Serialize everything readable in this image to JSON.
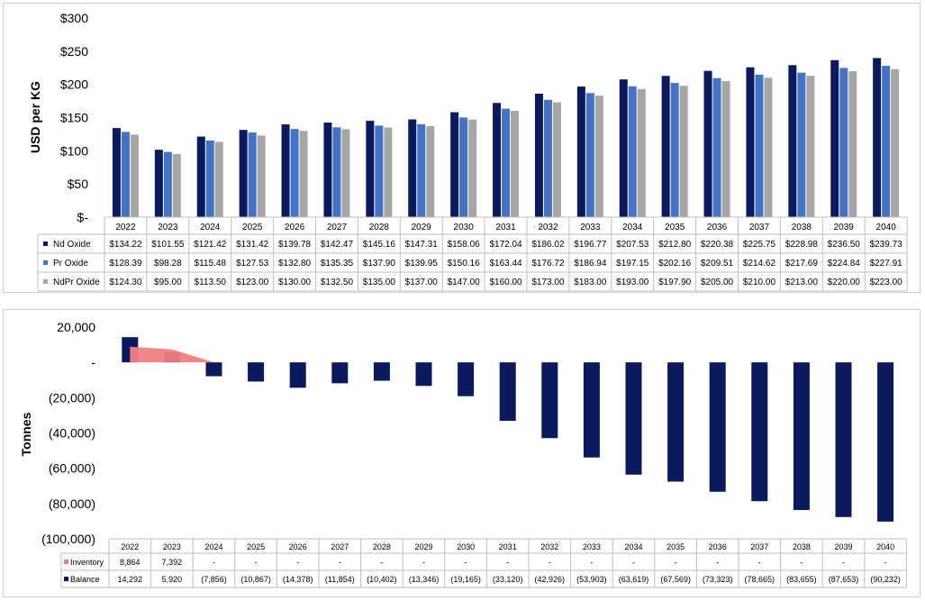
{
  "chart_data": [
    {
      "type": "bar",
      "ylabel": "USD per KG",
      "ylim": [
        0,
        300
      ],
      "yticks": [
        "$-",
        "$50",
        "$100",
        "$150",
        "$200",
        "$250",
        "$300"
      ],
      "categories": [
        "2022",
        "2023",
        "2024",
        "2025",
        "2026",
        "2027",
        "2028",
        "2029",
        "2030",
        "2031",
        "2032",
        "2033",
        "2034",
        "2035",
        "2036",
        "2037",
        "2038",
        "2039",
        "2040"
      ],
      "series": [
        {
          "name": "Nd Oxide",
          "color": "#0b1a5c",
          "values": [
            134.22,
            101.55,
            121.42,
            131.42,
            139.78,
            142.47,
            145.16,
            147.31,
            158.06,
            172.04,
            186.02,
            196.77,
            207.53,
            212.8,
            220.38,
            225.75,
            228.98,
            236.5,
            239.73
          ],
          "labels": [
            "$134.22",
            "$101.55",
            "$121.42",
            "$131.42",
            "$139.78",
            "$142.47",
            "$145.16",
            "$147.31",
            "$158.06",
            "$172.04",
            "$186.02",
            "$196.77",
            "$207.53",
            "$212.80",
            "$220.38",
            "$225.75",
            "$228.98",
            "$236.50",
            "$239.73"
          ]
        },
        {
          "name": "Pr Oxide",
          "color": "#4472c4",
          "values": [
            128.39,
            98.28,
            115.48,
            127.53,
            132.8,
            135.35,
            137.9,
            139.95,
            150.16,
            163.44,
            176.72,
            186.94,
            197.15,
            202.16,
            209.51,
            214.62,
            217.69,
            224.84,
            227.91
          ],
          "labels": [
            "$128.39",
            "$98.28",
            "$115.48",
            "$127.53",
            "$132.80",
            "$135.35",
            "$137.90",
            "$139.95",
            "$150.16",
            "$163.44",
            "$176.72",
            "$186.94",
            "$197.15",
            "$202.16",
            "$209.51",
            "$214.62",
            "$217.69",
            "$224.84",
            "$227.91"
          ]
        },
        {
          "name": "NdPr Oxide",
          "color": "#a6a6a6",
          "values": [
            124.3,
            95.0,
            113.5,
            123.0,
            130.0,
            132.5,
            135.0,
            137.0,
            147.0,
            160.0,
            173.0,
            183.0,
            193.0,
            197.9,
            205.0,
            210.0,
            213.0,
            220.0,
            223.0
          ],
          "labels": [
            "$124.30",
            "$95.00",
            "$113.50",
            "$123.00",
            "$130.00",
            "$132.50",
            "$135.00",
            "$137.00",
            "$147.00",
            "$160.00",
            "$173.00",
            "$183.00",
            "$193.00",
            "$197.90",
            "$205.00",
            "$210.00",
            "$213.00",
            "$220.00",
            "$223.00"
          ]
        }
      ]
    },
    {
      "type": "bar",
      "ylabel": "Tonnes",
      "ylim": [
        -100000,
        20000
      ],
      "yticks": [
        "(100,000)",
        "(80,000)",
        "(60,000)",
        "(40,000)",
        "(20,000)",
        "-",
        "20,000"
      ],
      "categories": [
        "2022",
        "2023",
        "2024",
        "2025",
        "2026",
        "2027",
        "2028",
        "2029",
        "2030",
        "2031",
        "2032",
        "2033",
        "2034",
        "2035",
        "2036",
        "2037",
        "2038",
        "2039",
        "2040"
      ],
      "series": [
        {
          "name": "Inventory",
          "type": "area",
          "color": "#f08080",
          "values": [
            8864,
            7392,
            0,
            null,
            null,
            null,
            null,
            null,
            null,
            null,
            null,
            null,
            null,
            null,
            null,
            null,
            null,
            null,
            null
          ],
          "labels": [
            "8,864",
            "7,392",
            "-",
            "-",
            "-",
            "-",
            "-",
            "-",
            "-",
            "-",
            "-",
            "-",
            "-",
            "-",
            "-",
            "-",
            "-",
            "-",
            "-"
          ]
        },
        {
          "name": "Balance",
          "type": "bar",
          "color": "#0b1a5c",
          "values": [
            14292,
            5920,
            -7856,
            -10867,
            -14378,
            -11854,
            -10402,
            -13346,
            -19165,
            -33120,
            -42926,
            -53903,
            -63619,
            -67569,
            -73323,
            -78665,
            -83655,
            -87653,
            -90232
          ],
          "labels": [
            "14,292",
            "5,920",
            "(7,856)",
            "(10,867)",
            "(14,378)",
            "(11,854)",
            "(10,402)",
            "(13,346)",
            "(19,165)",
            "(33,120)",
            "(42,926)",
            "(53,903)",
            "(63,619)",
            "(67,569)",
            "(73,323)",
            "(78,665)",
            "(83,655)",
            "(87,653)",
            "(90,232)"
          ]
        }
      ]
    }
  ]
}
